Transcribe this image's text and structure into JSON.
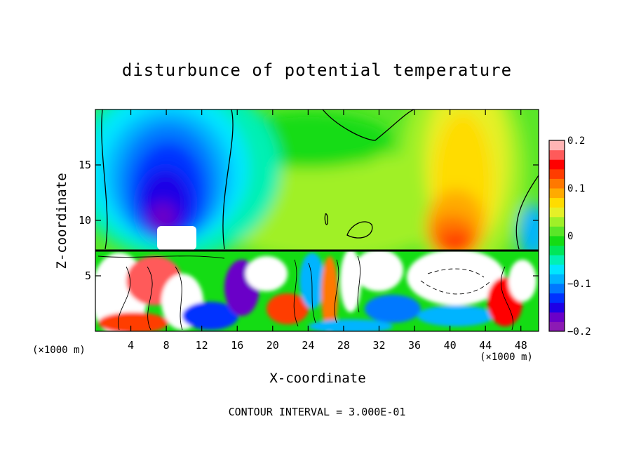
{
  "chart_data": {
    "type": "heatmap",
    "title": "disturbunce of potential temperature",
    "xlabel": "X-coordinate",
    "ylabel": "Z-coordinate",
    "x_unit_label_left": "(×1000 m)",
    "x_unit_label_right": "(×1000 m)",
    "xlim": [
      0,
      50
    ],
    "ylim": [
      0,
      20
    ],
    "x_ticks": [
      "4",
      "8",
      "12",
      "16",
      "20",
      "24",
      "28",
      "32",
      "36",
      "40",
      "44",
      "48"
    ],
    "y_ticks": [
      "5",
      "10",
      "15"
    ],
    "colorbar": {
      "range": [
        -0.2,
        0.2
      ],
      "tick_labels": [
        "0.2",
        "0.1",
        "0",
        "−0.1",
        "−0.2"
      ],
      "tick_values": [
        0.2,
        0.1,
        0,
        -0.1,
        -0.2
      ],
      "colors": [
        "#8c1ab4",
        "#6a00c8",
        "#1e00e6",
        "#0032ff",
        "#0078ff",
        "#00b4ff",
        "#00e6ff",
        "#00f0b4",
        "#00e65a",
        "#14dc14",
        "#5ae628",
        "#a0f028",
        "#e6f028",
        "#ffdc00",
        "#ffaa00",
        "#ff7800",
        "#ff3c00",
        "#ff0000",
        "#ff5a5a",
        "#ffb4b4"
      ]
    },
    "contour_interval": "CONTOUR INTERVAL = 3.000E-01",
    "features": [
      {
        "name": "cold anomaly upper-left",
        "x": 8,
        "z": 10.5,
        "value": -0.2
      },
      {
        "name": "warm anomaly upper-right",
        "x": 40,
        "z": 9.5,
        "value": 0.17
      },
      {
        "name": "mixed turbulent boundary layer",
        "z_top": 7.2
      }
    ]
  }
}
